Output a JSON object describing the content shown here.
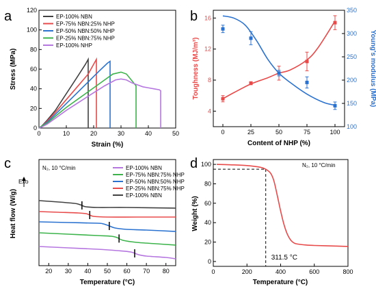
{
  "chart_data": [
    {
      "panel": "a",
      "type": "line",
      "xlabel": "Strain (%)",
      "ylabel": "Stress (MPa)",
      "xlim": [
        0,
        50
      ],
      "ylim": [
        0,
        120
      ],
      "xticks": [
        "0",
        "10",
        "20",
        "30",
        "40",
        "50"
      ],
      "yticks": [
        "0",
        "20",
        "40",
        "60",
        "80",
        "100",
        "120"
      ],
      "legend_placement": "top-left",
      "series": [
        {
          "name": "EP-100% NBN",
          "color": "#404040",
          "x": [
            0,
            1,
            3,
            6,
            10,
            14,
            17,
            18,
            18.01
          ],
          "y": [
            0,
            2,
            8,
            18,
            35,
            52,
            65,
            70,
            0
          ]
        },
        {
          "name": "EP-75% NBN:25% NHP",
          "color": "#e84a4a",
          "x": [
            0,
            1,
            3,
            6,
            10,
            14,
            18,
            21,
            21.01
          ],
          "y": [
            0,
            2,
            7,
            16,
            29,
            42,
            55,
            70,
            0
          ]
        },
        {
          "name": "EP-50% NBN:50% NHP",
          "color": "#2a72d0",
          "x": [
            0,
            1,
            3,
            6,
            10,
            14,
            18,
            22,
            25,
            26,
            26.01
          ],
          "y": [
            0,
            2,
            6,
            14,
            25,
            36,
            47,
            58,
            66,
            68,
            0
          ]
        },
        {
          "name": "EP-25% NBN:75% NHP",
          "color": "#3cb44b",
          "x": [
            0,
            1,
            3,
            6,
            10,
            15,
            20,
            24,
            27,
            30,
            32,
            35.5,
            35.51
          ],
          "y": [
            0,
            2,
            5,
            12,
            21,
            31,
            41,
            49,
            55,
            57,
            55,
            43,
            0
          ]
        },
        {
          "name": "EP-100% NHP",
          "color": "#b576e0",
          "x": [
            0,
            1,
            3,
            6,
            10,
            15,
            20,
            24,
            28,
            30,
            32,
            34,
            36,
            38,
            40,
            42,
            44,
            44.5,
            44.51
          ],
          "y": [
            0,
            1,
            4,
            10,
            18,
            27,
            36,
            43,
            49,
            50,
            49,
            46,
            44,
            42,
            41,
            40,
            39,
            38,
            0
          ]
        }
      ]
    },
    {
      "panel": "b",
      "type": "line",
      "xlabel": "Content of NHP (%)",
      "ylabel": "Toughness (MJ/m³)",
      "ylabel_right": "Young's modulus (MPa)",
      "x_categories": [
        "0",
        "25",
        "50",
        "75",
        "100"
      ],
      "ylim_left": [
        2,
        17
      ],
      "yticks_left": [
        "4",
        "8",
        "12",
        "16"
      ],
      "ylim_right": [
        100,
        350
      ],
      "yticks_right": [
        "100",
        "150",
        "200",
        "250",
        "300",
        "350"
      ],
      "series": [
        {
          "name": "Toughness",
          "axis": "left",
          "color": "#e84a4a",
          "x": [
            0,
            25,
            50,
            75,
            100
          ],
          "y": [
            5.6,
            7.6,
            8.9,
            10.4,
            15.4
          ],
          "err": [
            0.4,
            0.2,
            0.9,
            1.2,
            0.9
          ]
        },
        {
          "name": "Young's modulus",
          "axis": "right",
          "color": "#2a72d0",
          "x": [
            0,
            25,
            50,
            75,
            100
          ],
          "y": [
            310,
            290,
            215,
            195,
            145
          ],
          "err": [
            8,
            14,
            6,
            12,
            8
          ]
        }
      ],
      "fit_curves": {
        "toughness": [
          [
            0,
            5.6
          ],
          [
            10,
            6.4
          ],
          [
            25,
            7.5
          ],
          [
            40,
            8.3
          ],
          [
            50,
            8.9
          ],
          [
            60,
            9.3
          ],
          [
            75,
            10.6
          ],
          [
            85,
            12.2
          ],
          [
            100,
            15.6
          ]
        ],
        "modulus": [
          [
            0,
            338
          ],
          [
            10,
            333
          ],
          [
            20,
            318
          ],
          [
            30,
            285
          ],
          [
            40,
            245
          ],
          [
            50,
            215
          ],
          [
            60,
            195
          ],
          [
            75,
            170
          ],
          [
            90,
            152
          ],
          [
            100,
            146
          ]
        ]
      }
    },
    {
      "panel": "c",
      "type": "line",
      "title": "N₂, 10 °C/min",
      "xlabel": "Temperature (°C)",
      "ylabel": "Heat flow (W/g)",
      "exo_label": "Exo",
      "xlim": [
        15,
        85
      ],
      "xticks": [
        "20",
        "30",
        "40",
        "50",
        "60",
        "70",
        "80"
      ],
      "legend_placement": "top-right",
      "series": [
        {
          "name": "EP-100% NBN",
          "color": "#b576e0",
          "tg": 64,
          "x": [
            15,
            30,
            45,
            55,
            62,
            66,
            70,
            80,
            85
          ],
          "y": [
            0.1,
            0.08,
            0.06,
            0.04,
            0.02,
            -0.02,
            -0.04,
            -0.06,
            -0.08
          ]
        },
        {
          "name": "EP-75% NBN:75% NHP",
          "color": "#3cb44b",
          "tg": 56,
          "x": [
            15,
            30,
            45,
            52,
            55,
            58,
            65,
            75,
            85
          ],
          "y": [
            0.3,
            0.28,
            0.26,
            0.25,
            0.23,
            0.19,
            0.16,
            0.14,
            0.12
          ]
        },
        {
          "name": "EP-50% NBN:50% NHP",
          "color": "#2a72d0",
          "tg": 51,
          "x": [
            15,
            30,
            45,
            48,
            51,
            54,
            60,
            70,
            85
          ],
          "y": [
            0.46,
            0.45,
            0.44,
            0.43,
            0.4,
            0.37,
            0.35,
            0.34,
            0.32
          ]
        },
        {
          "name": "EP-25% NBN:75% NHP",
          "color": "#e84a4a",
          "tg": 41,
          "x": [
            15,
            25,
            35,
            39,
            41,
            43,
            50,
            65,
            85
          ],
          "y": [
            0.61,
            0.6,
            0.59,
            0.58,
            0.56,
            0.54,
            0.53,
            0.53,
            0.53
          ]
        },
        {
          "name": "EP-100% NBN",
          "color": "#404040",
          "tg": 37,
          "x": [
            15,
            25,
            33,
            35,
            37,
            39,
            45,
            60,
            85
          ],
          "y": [
            0.77,
            0.75,
            0.73,
            0.72,
            0.7,
            0.68,
            0.67,
            0.67,
            0.66
          ]
        }
      ]
    },
    {
      "panel": "d",
      "type": "line",
      "title": "N₂, 10 °C/min",
      "xlabel": "Temperature (°C)",
      "ylabel": "Weight (%)",
      "xlim": [
        0,
        800
      ],
      "ylim": [
        -5,
        105
      ],
      "xticks": [
        "0",
        "200",
        "400",
        "600",
        "800"
      ],
      "yticks": [
        "0",
        "20",
        "40",
        "60",
        "80",
        "100"
      ],
      "annotation": "311.5 °C",
      "annotation_point": [
        311.5,
        95
      ],
      "series": [
        {
          "name": "TGA",
          "color": "#e84a4a",
          "x": [
            20,
            100,
            200,
            280,
            311.5,
            340,
            360,
            380,
            400,
            420,
            440,
            460,
            480,
            500,
            550,
            600,
            700,
            800
          ],
          "y": [
            100,
            99.6,
            98.8,
            97,
            95,
            91,
            83,
            68,
            52,
            38,
            28,
            22,
            19,
            18,
            17,
            16.5,
            16,
            15.5
          ]
        }
      ]
    }
  ],
  "panels": {
    "a": "a",
    "b": "b",
    "c": "c",
    "d": "d"
  }
}
